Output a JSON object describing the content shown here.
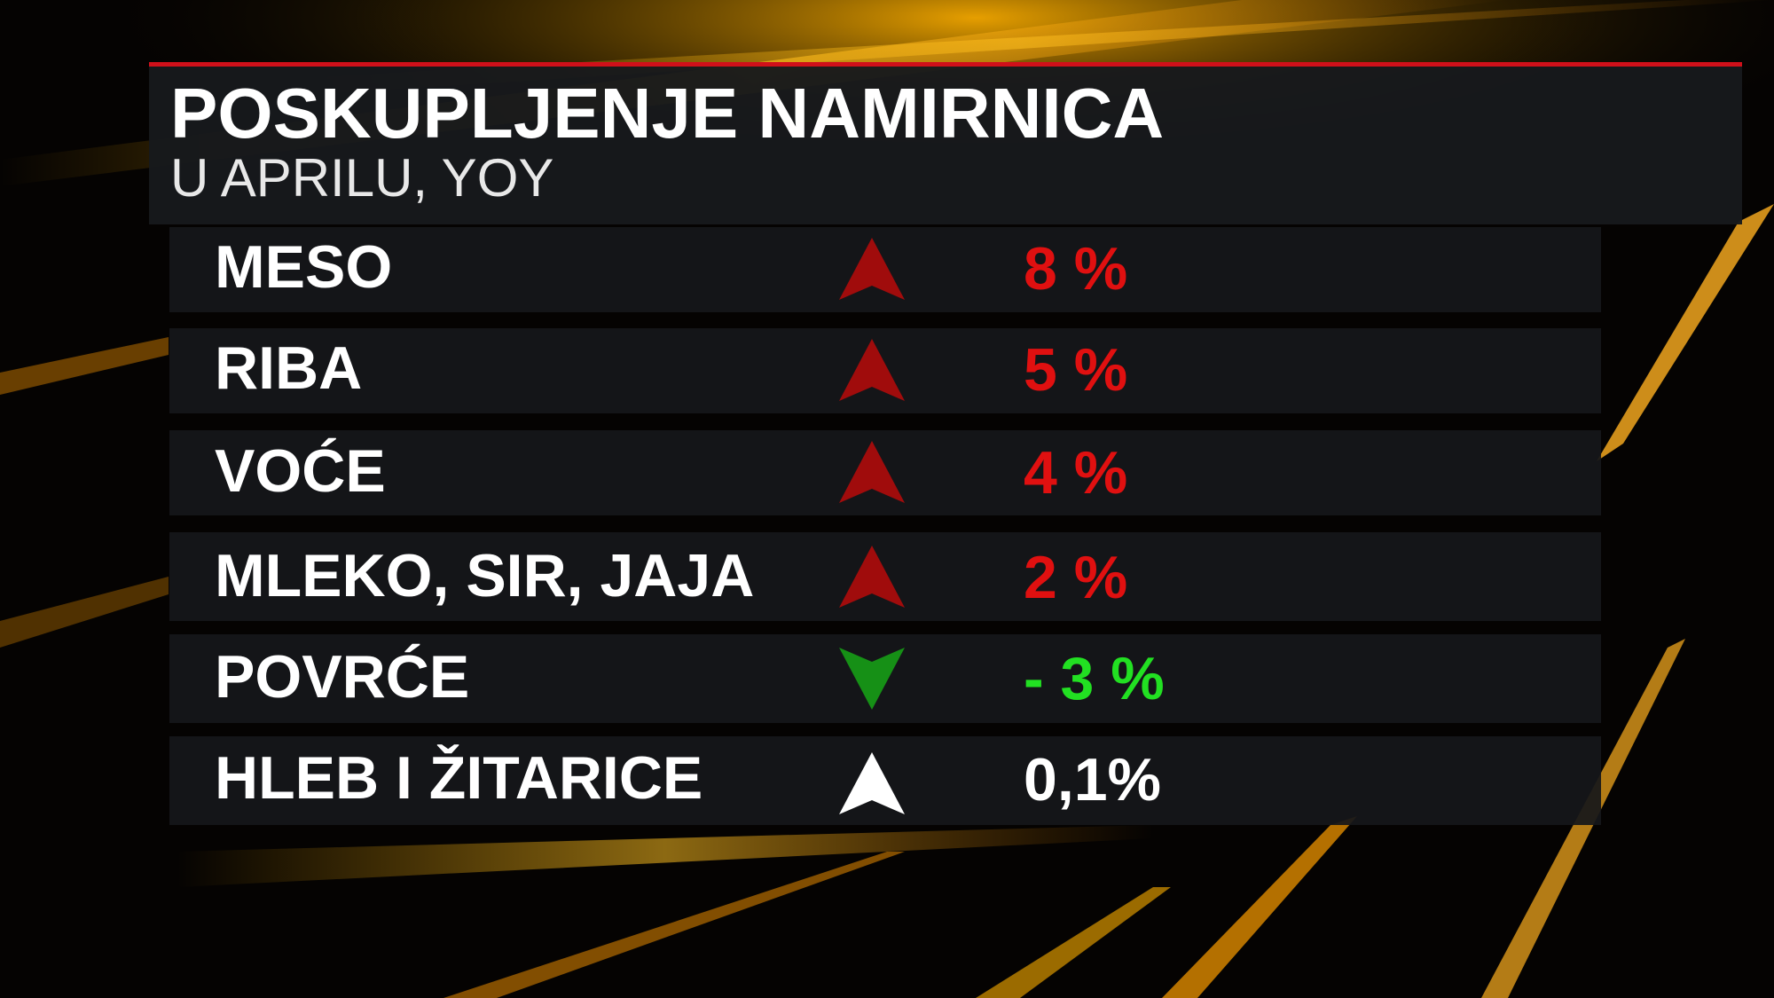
{
  "header": {
    "title": "POSKUPLJENJE NAMIRNICA",
    "subtitle": "U APRILU, YOY"
  },
  "table": {
    "rows": [
      [
        "MESO",
        "8 %"
      ],
      [
        "RIBA",
        "5 %"
      ],
      [
        "VOĆE",
        "4 %"
      ],
      [
        "MLEKO, SIR, JAJA",
        "2 %"
      ],
      [
        "POVRĆE",
        "- 3 %"
      ],
      [
        "HLEB I ŽITARICE",
        "0,1%"
      ]
    ]
  }
}
